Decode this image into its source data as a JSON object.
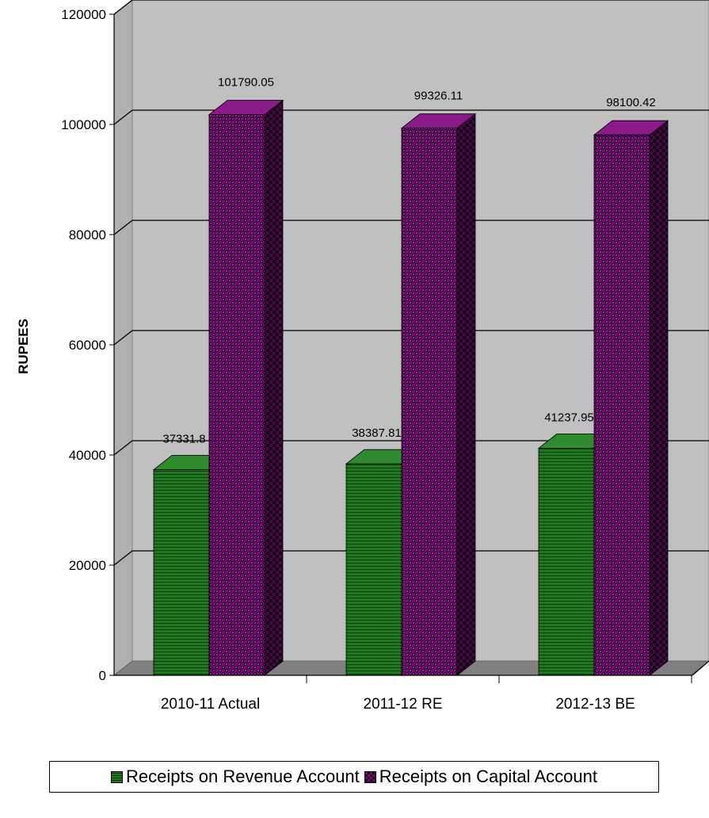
{
  "chart_data": {
    "type": "bar",
    "title": "",
    "xlabel": "",
    "ylabel": "RUPEES",
    "ylim": [
      0,
      120000
    ],
    "yticks": [
      0,
      20000,
      40000,
      60000,
      80000,
      100000,
      120000
    ],
    "grid": true,
    "legend_position": "bottom",
    "categories": [
      "2010-11 Actual",
      "2011-12 RE",
      "2012-13 BE"
    ],
    "series": [
      {
        "name": "Receipts on Revenue Account",
        "values": [
          37331.8,
          38387.81,
          41237.95
        ],
        "labels": [
          "37331.8",
          "38387.81",
          "41237.95"
        ],
        "color": "#1f7a1f"
      },
      {
        "name": "Receipts on Capital Account",
        "values": [
          101790.05,
          99326.11,
          98100.42
        ],
        "labels": [
          "101790.05",
          "99326.11",
          "98100.42"
        ],
        "color": "#7a0a7a"
      }
    ]
  }
}
